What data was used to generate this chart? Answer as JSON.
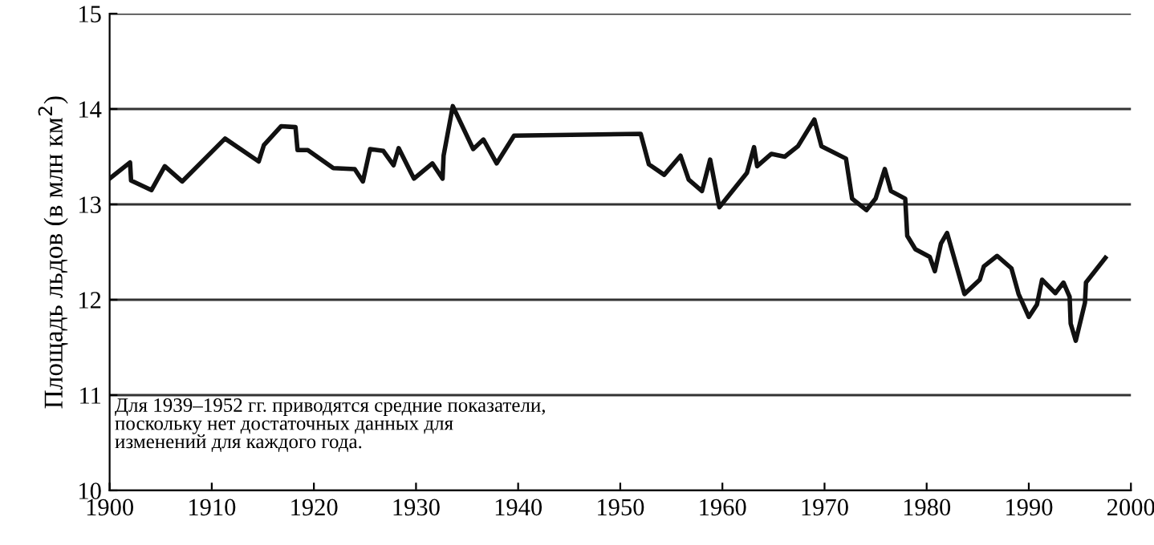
{
  "chart_data": {
    "type": "line",
    "ylabel": "Площадь льдов (в млн км$^{2}$)",
    "annotations": [
      "Для 1939–1952 гг. приводятся средние показатели,\nпоскольку нет достаточных данных для\nизменений для каждого года."
    ],
    "xlim": [
      1900,
      2000
    ],
    "xticks": [
      1900,
      1910,
      1920,
      1930,
      1940,
      1950,
      1960,
      1970,
      1980,
      1990,
      2000
    ],
    "ylim": [
      10,
      15
    ],
    "yticks": [
      10,
      11,
      12,
      13,
      14,
      15
    ],
    "grid": "y",
    "marker": "none",
    "line_style": "solid",
    "series": [
      {
        "color": "#111111",
        "x": [
          1900.0,
          1902.0,
          1902.1,
          1904.1,
          1905.4,
          1907.1,
          1911.3,
          1914.6,
          1915.1,
          1916.8,
          1918.2,
          1918.4,
          1919.4,
          1921.9,
          1924.0,
          1924.8,
          1925.5,
          1926.8,
          1927.8,
          1928.3,
          1929.8,
          1931.6,
          1932.6,
          1932.7,
          1933.6,
          1935.6,
          1936.6,
          1937.9,
          1939.6,
          1952.0,
          1952.8,
          1954.3,
          1955.9,
          1956.7,
          1958.0,
          1958.8,
          1959.7,
          1962.4,
          1963.1,
          1963.4,
          1964.8,
          1966.1,
          1967.4,
          1969.0,
          1969.7,
          1972.1,
          1972.7,
          1974.1,
          1975.0,
          1975.9,
          1976.5,
          1977.9,
          1978.1,
          1978.9,
          1980.3,
          1980.8,
          1981.4,
          1982.0,
          1983.7,
          1985.2,
          1985.6,
          1986.9,
          1988.3,
          1989.0,
          1990.0,
          1990.8,
          1991.3,
          1992.6,
          1993.4,
          1994.0,
          1994.1,
          1994.6,
          1995.5,
          1995.6,
          1997.5
        ],
        "values": [
          13.27,
          13.44,
          13.25,
          13.15,
          13.4,
          13.24,
          13.69,
          13.45,
          13.62,
          13.82,
          13.81,
          13.57,
          13.57,
          13.38,
          13.37,
          13.24,
          13.58,
          13.56,
          13.41,
          13.59,
          13.27,
          13.43,
          13.27,
          13.51,
          14.03,
          13.58,
          13.68,
          13.43,
          13.72,
          13.74,
          13.42,
          13.31,
          13.51,
          13.26,
          13.14,
          13.47,
          12.97,
          13.33,
          13.6,
          13.4,
          13.53,
          13.5,
          13.61,
          13.89,
          13.61,
          13.48,
          13.06,
          12.94,
          13.06,
          13.37,
          13.14,
          13.06,
          12.67,
          12.53,
          12.45,
          12.3,
          12.59,
          12.7,
          12.06,
          12.21,
          12.35,
          12.46,
          12.33,
          12.06,
          11.82,
          11.95,
          12.21,
          12.07,
          12.18,
          12.03,
          11.75,
          11.57,
          11.97,
          12.18,
          12.44
        ]
      }
    ]
  }
}
